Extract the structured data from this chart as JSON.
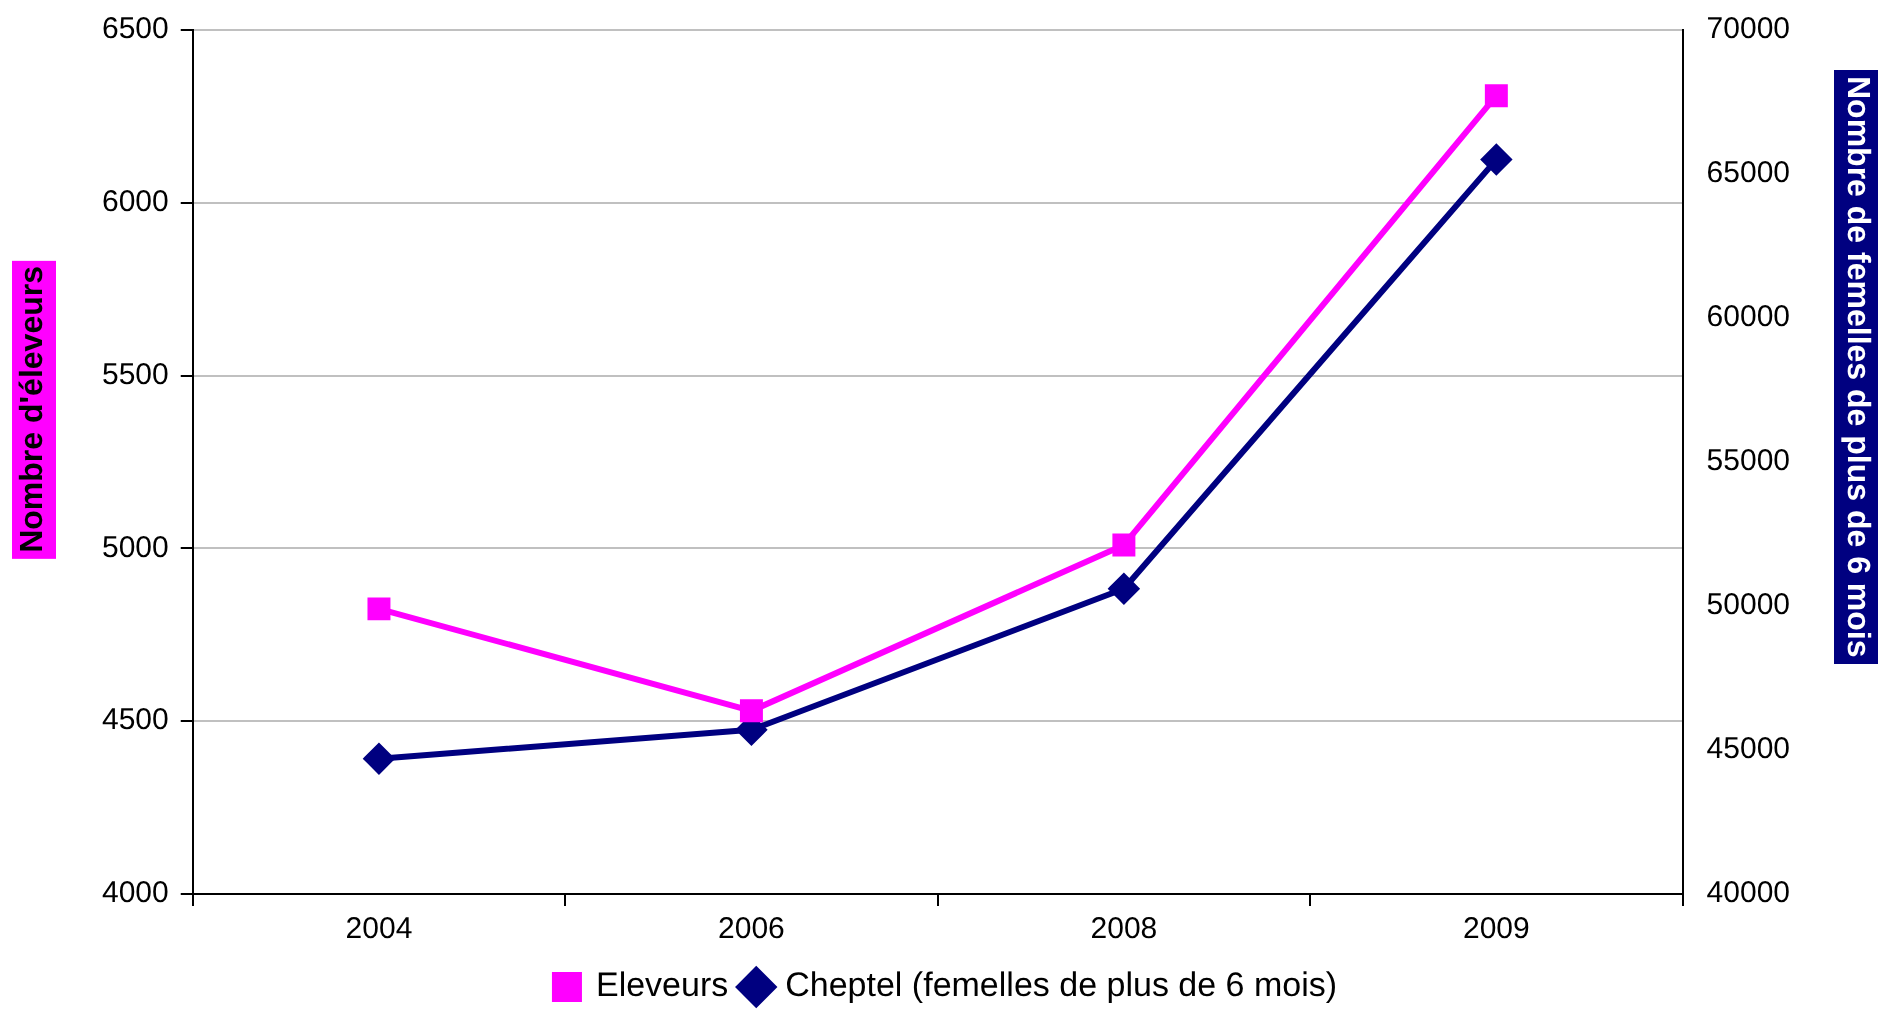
{
  "chart_data": {
    "type": "line",
    "ylabel": "Nombre d'éleveurs",
    "y2label": "Nombre de femelles de plus de 6 mois",
    "categories": [
      "2004",
      "2006",
      "2008",
      "2009"
    ],
    "series": [
      {
        "name": "Eleveurs",
        "color": "#ff00ff",
        "marker": "square",
        "values": [
          4825,
          4530,
          5010,
          6310
        ]
      },
      {
        "name": "Cheptel (femelles de plus de 6 mois)",
        "color": "#000080",
        "marker": "diamond",
        "axis": "y2",
        "values": [
          44700,
          45700,
          50600,
          65500
        ]
      }
    ],
    "ylim": [
      4000,
      6500
    ],
    "yticks": [
      4000,
      4500,
      5000,
      5500,
      6000,
      6500
    ],
    "y2lim": [
      40000,
      70000
    ],
    "y2ticks": [
      40000,
      45000,
      50000,
      55000,
      60000,
      65000,
      70000
    ],
    "grid": "y",
    "legend": "bottom"
  }
}
